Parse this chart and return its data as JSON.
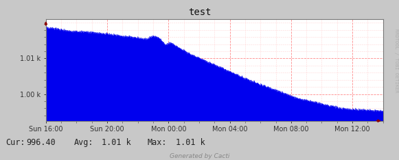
{
  "title": "test",
  "bg_color": "#c8c8c8",
  "plot_bg_color": "#ffffff",
  "fill_color": "#0000ee",
  "line_color": "#0000ee",
  "grid_color": "#ff8888",
  "grid_minor_color": "#ffcccc",
  "x_tick_labels": [
    "Sun 16:00",
    "Sun 20:00",
    "Mon 00:00",
    "Mon 04:00",
    "Mon 08:00",
    "Mon 12:00"
  ],
  "x_tick_positions": [
    0.0,
    0.1818,
    0.3636,
    0.5454,
    0.7272,
    0.909
  ],
  "y_tick_values": [
    1010.0,
    1000.0
  ],
  "y_min": 992.5,
  "y_max": 1021.0,
  "footer_cur": "Cur:",
  "footer_cur_val": "996.40",
  "footer_avg": "Avg:",
  "footer_avg_val": "1.01 k",
  "footer_max": "Max:",
  "footer_max_val": "1.01 k",
  "cacti_text": "Generated by Cacti",
  "sidebar_text": "RRDTOOL / TOBI OETIKER",
  "title_fontsize": 10,
  "axis_fontsize": 7,
  "footer_fontsize": 8.5,
  "cacti_fontsize": 6.5
}
